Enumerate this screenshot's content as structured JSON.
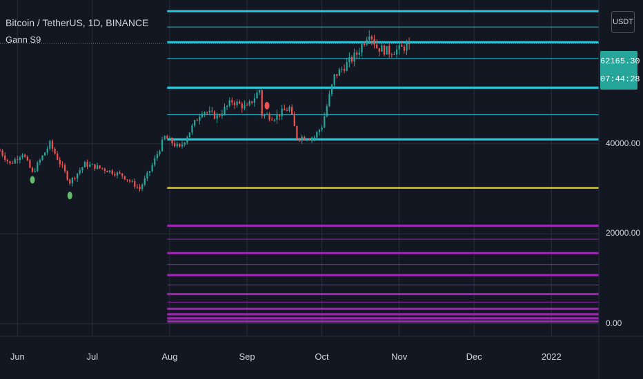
{
  "header": {
    "title": "Bitcoin / TetherUS, 1D, BINANCE",
    "indicator": "Gann S9"
  },
  "toolbar": {
    "currency_label": "USDT"
  },
  "price_tag": {
    "price": "62165.30",
    "countdown": "07:44:28",
    "color": "#26a69a"
  },
  "colors": {
    "background": "#131722",
    "up": "#26a69a",
    "down": "#ef5350",
    "level_cyan": "#26c6da",
    "level_yellow": "#ffeb3b",
    "level_purple": "#9c27b0",
    "marker_green": "#66bb6a",
    "marker_red": "#ef5350"
  },
  "chart_data": {
    "type": "candlestick",
    "symbol": "Bitcoin / TetherUS",
    "interval": "1D",
    "exchange": "BINANCE",
    "indicator": "Gann S9",
    "y_axis": {
      "ticks": [
        {
          "value": 40000,
          "label": "40000.00"
        },
        {
          "value": 20000,
          "label": "20000.00"
        },
        {
          "value": 0,
          "label": "0.00"
        }
      ],
      "ylim": [
        -2800,
        72000
      ]
    },
    "x_axis": {
      "start_date": "2021-05-25",
      "end_date": "2022-01-20",
      "ticks": [
        {
          "date": "2021-06-01",
          "label": "Jun"
        },
        {
          "date": "2021-07-01",
          "label": "Jul"
        },
        {
          "date": "2021-08-01",
          "label": "Aug"
        },
        {
          "date": "2021-09-01",
          "label": "Sep"
        },
        {
          "date": "2021-10-01",
          "label": "Oct"
        },
        {
          "date": "2021-11-01",
          "label": "Nov"
        },
        {
          "date": "2021-12-01",
          "label": "Dec"
        },
        {
          "date": "2022-01-01",
          "label": "2022"
        }
      ]
    },
    "grid": true,
    "last_price": 62165.3,
    "price_path": [
      [
        "2021-05-25",
        38500
      ],
      [
        "2021-05-29",
        35500
      ],
      [
        "2021-06-03",
        38000
      ],
      [
        "2021-06-07",
        33500
      ],
      [
        "2021-06-14",
        40000
      ],
      [
        "2021-06-22",
        31500
      ],
      [
        "2021-06-28",
        35500
      ],
      [
        "2021-07-05",
        34500
      ],
      [
        "2021-07-13",
        33000
      ],
      [
        "2021-07-20",
        30000
      ],
      [
        "2021-07-24",
        34000
      ],
      [
        "2021-07-30",
        41500
      ],
      [
        "2021-08-05",
        39000
      ],
      [
        "2021-08-14",
        47500
      ],
      [
        "2021-08-20",
        46000
      ],
      [
        "2021-08-26",
        49500
      ],
      [
        "2021-09-01",
        48000
      ],
      [
        "2021-09-06",
        52000
      ],
      [
        "2021-09-07",
        46500
      ],
      [
        "2021-09-12",
        46000
      ],
      [
        "2021-09-18",
        48000
      ],
      [
        "2021-09-21",
        41500
      ],
      [
        "2021-09-28",
        41500
      ],
      [
        "2021-10-01",
        44000
      ],
      [
        "2021-10-06",
        55000
      ],
      [
        "2021-10-15",
        60000
      ],
      [
        "2021-10-20",
        65000
      ],
      [
        "2021-10-23",
        61500
      ],
      [
        "2021-10-28",
        60500
      ],
      [
        "2021-11-01",
        61000
      ],
      [
        "2021-11-04",
        61800
      ],
      [
        "2021-11-05",
        62165
      ]
    ],
    "gann_levels": [
      {
        "value": 69500,
        "color": "#26c6da",
        "weight": "thick"
      },
      {
        "value": 66000,
        "color": "#26c6da",
        "weight": "thin"
      },
      {
        "value": 62600,
        "color": "#26c6da",
        "weight": "thick"
      },
      {
        "value": 59000,
        "color": "#26c6da",
        "weight": "thin"
      },
      {
        "value": 52500,
        "color": "#26c6da",
        "weight": "thick"
      },
      {
        "value": 46500,
        "color": "#26c6da",
        "weight": "thin"
      },
      {
        "value": 41000,
        "color": "#26c6da",
        "weight": "thick"
      },
      {
        "value": 30200,
        "color": "#ffeb3b",
        "weight": "medium"
      },
      {
        "value": 21800,
        "color": "#9c27b0",
        "weight": "thick"
      },
      {
        "value": 18800,
        "color": "#9c27b0",
        "weight": "thin"
      },
      {
        "value": 15700,
        "color": "#9c27b0",
        "weight": "thick"
      },
      {
        "value": 13200,
        "color": "#9c27b0",
        "weight": "thin"
      },
      {
        "value": 10800,
        "color": "#9c27b0",
        "weight": "thick"
      },
      {
        "value": 8600,
        "color": "#9c27b0",
        "weight": "thin"
      },
      {
        "value": 6600,
        "color": "#9c27b0",
        "weight": "thick"
      },
      {
        "value": 4800,
        "color": "#9c27b0",
        "weight": "thin"
      },
      {
        "value": 3300,
        "color": "#9c27b0",
        "weight": "thick"
      },
      {
        "value": 2100,
        "color": "#9c27b0",
        "weight": "thick"
      },
      {
        "value": 1200,
        "color": "#9c27b0",
        "weight": "thick"
      },
      {
        "value": 500,
        "color": "#9c27b0",
        "weight": "thick"
      }
    ],
    "levels_start_date": "2021-07-31",
    "signal_markers": [
      {
        "date": "2021-06-07",
        "value": 32000,
        "color": "#66bb6a"
      },
      {
        "date": "2021-06-22",
        "value": 28500,
        "color": "#66bb6a"
      },
      {
        "date": "2021-09-09",
        "value": 48500,
        "color": "#ef5350"
      }
    ]
  }
}
